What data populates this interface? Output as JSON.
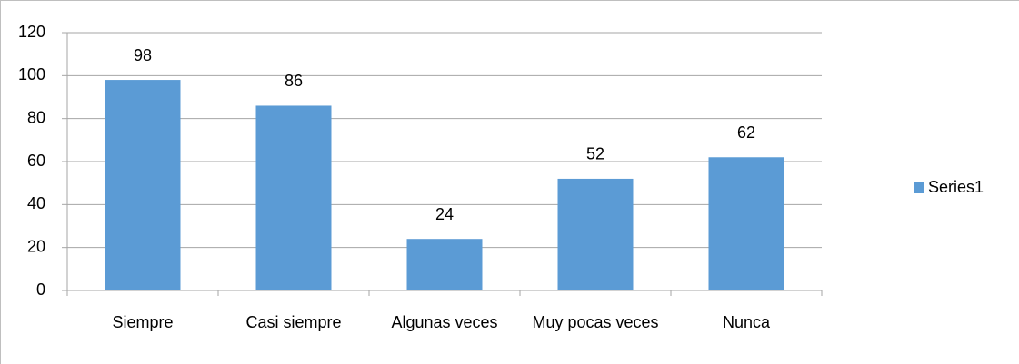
{
  "chart_data": {
    "type": "bar",
    "categories": [
      "Siempre",
      "Casi siempre",
      "Algunas veces",
      "Muy pocas veces",
      "Nunca"
    ],
    "series": [
      {
        "name": "Series1",
        "color": "#5b9bd5",
        "values": [
          98,
          86,
          24,
          52,
          62
        ]
      }
    ],
    "ylim": [
      0,
      120
    ],
    "yticks": [
      0,
      20,
      40,
      60,
      80,
      100,
      120
    ],
    "grid": true,
    "legend": "right"
  }
}
